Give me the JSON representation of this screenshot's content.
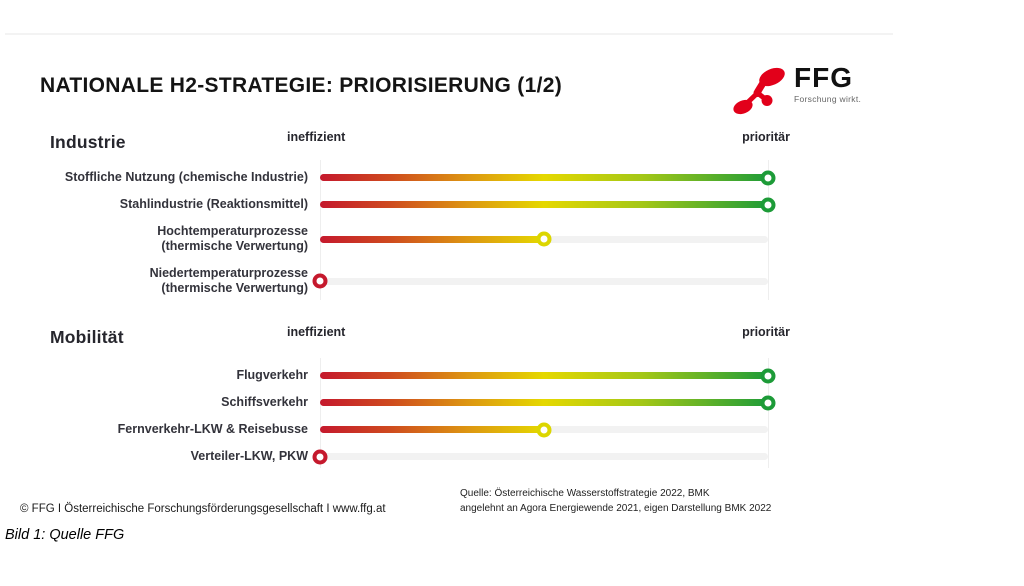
{
  "slide": {
    "title": "NATIONALE H2-STRATEGIE: PRIORISIERUNG (1/2)",
    "logo": {
      "name": "FFG",
      "tagline": "Forschung wirkt.",
      "brand_color": "#e2001a"
    },
    "footer_left": "© FFG I Österreichische Forschungsförderungsgesellschaft I www.ffg.at",
    "source_line1": "Quelle: Österreichische Wasserstoffstrategie 2022, BMK",
    "source_line2": "angelehnt an Agora Energiewende 2021, eigen Darstellung BMK 2022"
  },
  "caption": "Bild 1: Quelle FFG",
  "scale_gradient": [
    "#c5192d 0%",
    "#ce481f 15%",
    "#dd9612 33%",
    "#e5d800 50%",
    "#a3c717 72%",
    "#1f9c38 100%"
  ],
  "chart_data": [
    {
      "type": "bar",
      "title": "Industrie",
      "orientation": "horizontal",
      "axis": {
        "min_label": "ineffizient",
        "max_label": "prioritär",
        "range": [
          0,
          100
        ],
        "gridlines": false
      },
      "rows": [
        {
          "label_lines": [
            "Stoffliche Nutzung (chemische Industrie)"
          ],
          "value": 100,
          "marker_color": "#1d9b38"
        },
        {
          "label_lines": [
            "Stahlindustrie (Reaktionsmittel)"
          ],
          "value": 100,
          "marker_color": "#1d9b38"
        },
        {
          "label_lines": [
            "Hochtemperaturprozesse",
            "(thermische Verwertung)"
          ],
          "value": 50,
          "marker_color": "#dcd600"
        },
        {
          "label_lines": [
            "Niedertemperaturprozesse",
            "(thermische Verwertung)"
          ],
          "value": 0,
          "marker_color": "#c5192d"
        }
      ]
    },
    {
      "type": "bar",
      "title": "Mobilität",
      "orientation": "horizontal",
      "axis": {
        "min_label": "ineffizient",
        "max_label": "prioritär",
        "range": [
          0,
          100
        ],
        "gridlines": false
      },
      "rows": [
        {
          "label_lines": [
            "Flugverkehr"
          ],
          "value": 100,
          "marker_color": "#1d9b38"
        },
        {
          "label_lines": [
            "Schiffsverkehr"
          ],
          "value": 100,
          "marker_color": "#1d9b38"
        },
        {
          "label_lines": [
            "Fernverkehr-LKW & Reisebusse"
          ],
          "value": 50,
          "marker_color": "#dcd600"
        },
        {
          "label_lines": [
            "Verteiler-LKW, PKW"
          ],
          "value": 0,
          "marker_color": "#c5192d"
        }
      ]
    }
  ]
}
